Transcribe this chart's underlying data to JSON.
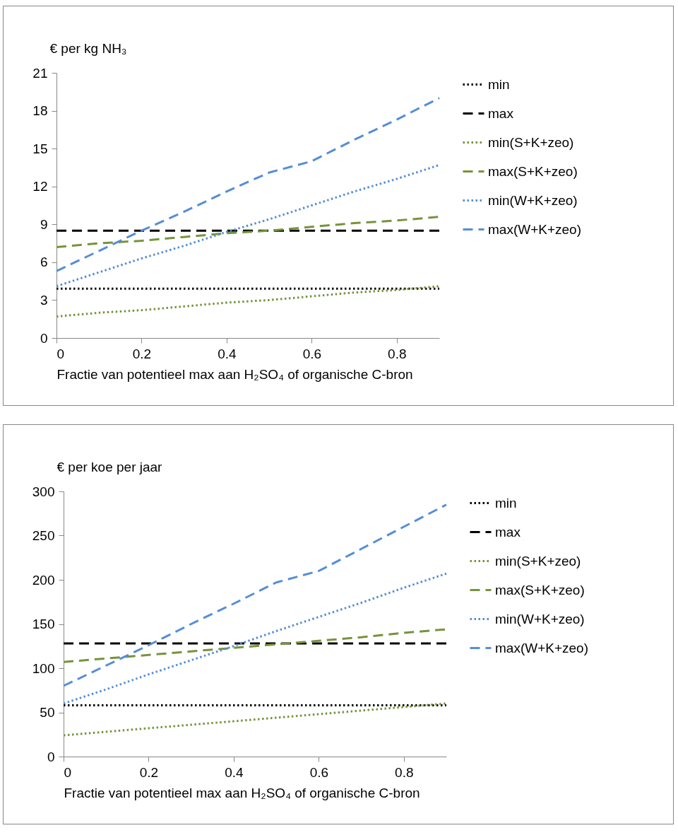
{
  "chart_data": [
    {
      "type": "line",
      "ylabel": "€ per kg NH₃",
      "xlabel": "Fractie van potentieel max aan H₂SO₄ of organische C-bron",
      "x": [
        0,
        0.1,
        0.2,
        0.3,
        0.4,
        0.5,
        0.6,
        0.7,
        0.8,
        0.9
      ],
      "xlim": [
        0,
        0.9
      ],
      "xticks": [
        0,
        0.2,
        0.4,
        0.6,
        0.8
      ],
      "ylim": [
        0,
        21
      ],
      "yticks": [
        0,
        3,
        6,
        9,
        12,
        15,
        18,
        21
      ],
      "grid": false,
      "legend": "right",
      "marker": "none",
      "series": [
        {
          "name": "min",
          "color": "#000000",
          "line_style": "dotted",
          "values": [
            3.9,
            3.9,
            3.9,
            3.9,
            3.9,
            3.9,
            3.9,
            3.9,
            3.9,
            3.9
          ]
        },
        {
          "name": "max",
          "color": "#000000",
          "line_style": "dashed",
          "values": [
            8.5,
            8.5,
            8.5,
            8.5,
            8.5,
            8.5,
            8.5,
            8.5,
            8.5,
            8.5
          ]
        },
        {
          "name": "min(S+K+zeo)",
          "color": "#77933c",
          "line_style": "dotted",
          "values": [
            1.7,
            2.0,
            2.2,
            2.5,
            2.8,
            3.0,
            3.3,
            3.6,
            3.8,
            4.1
          ]
        },
        {
          "name": "max(S+K+zeo)",
          "color": "#77933c",
          "line_style": "dashed",
          "values": [
            7.2,
            7.5,
            7.7,
            8.0,
            8.3,
            8.5,
            8.8,
            9.1,
            9.3,
            9.6
          ]
        },
        {
          "name": "min(W+K+zeo)",
          "color": "#558ed5",
          "line_style": "dotted",
          "values": [
            4.1,
            5.2,
            6.3,
            7.3,
            8.4,
            9.4,
            10.5,
            11.6,
            12.6,
            13.7
          ]
        },
        {
          "name": "max(W+K+zeo)",
          "color": "#558ed5",
          "line_style": "dashed",
          "values": [
            5.3,
            6.9,
            8.5,
            10.0,
            11.6,
            13.1,
            14.0,
            15.7,
            17.3,
            19.0
          ]
        }
      ]
    },
    {
      "type": "line",
      "ylabel": "€ per koe per jaar",
      "xlabel": "Fractie van potentieel max aan H₂SO₄ of organische C-bron",
      "x": [
        0,
        0.1,
        0.2,
        0.3,
        0.4,
        0.5,
        0.6,
        0.7,
        0.8,
        0.9
      ],
      "xlim": [
        0,
        0.9
      ],
      "xticks": [
        0,
        0.2,
        0.4,
        0.6,
        0.8
      ],
      "ylim": [
        0,
        300
      ],
      "yticks": [
        0,
        50,
        100,
        150,
        200,
        250,
        300
      ],
      "grid": false,
      "legend": "right",
      "marker": "none",
      "series": [
        {
          "name": "min",
          "color": "#000000",
          "line_style": "dotted",
          "values": [
            58,
            58,
            58,
            58,
            58,
            58,
            58,
            58,
            58,
            58
          ]
        },
        {
          "name": "max",
          "color": "#000000",
          "line_style": "dashed",
          "values": [
            128,
            128,
            128,
            128,
            128,
            128,
            128,
            128,
            128,
            128
          ]
        },
        {
          "name": "min(S+K+zeo)",
          "color": "#77933c",
          "line_style": "dotted",
          "values": [
            24,
            28,
            32,
            36,
            40,
            44,
            48,
            52,
            56,
            60
          ]
        },
        {
          "name": "max(S+K+zeo)",
          "color": "#77933c",
          "line_style": "dashed",
          "values": [
            107,
            111,
            115,
            119,
            123,
            127,
            131,
            135,
            140,
            144
          ]
        },
        {
          "name": "min(W+K+zeo)",
          "color": "#558ed5",
          "line_style": "dotted",
          "values": [
            60,
            76,
            93,
            109,
            125,
            142,
            158,
            174,
            191,
            207
          ]
        },
        {
          "name": "max(W+K+zeo)",
          "color": "#558ed5",
          "line_style": "dashed",
          "values": [
            80,
            103,
            126,
            150,
            173,
            197,
            210,
            235,
            260,
            285
          ]
        }
      ]
    }
  ]
}
